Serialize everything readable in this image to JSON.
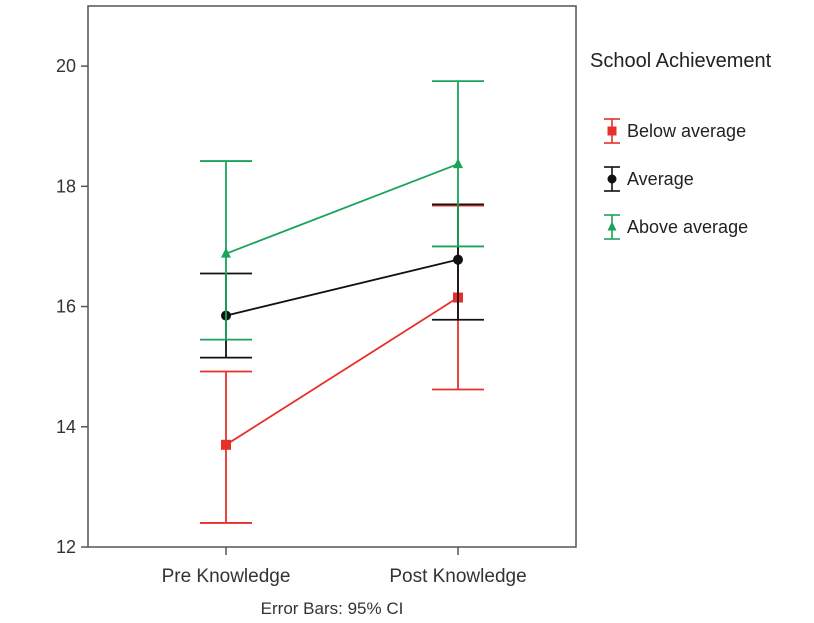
{
  "chart_data": {
    "type": "line",
    "title": "",
    "xlabel": "",
    "ylabel": "",
    "categories": [
      "Pre Knowledge",
      "Post Knowledge"
    ],
    "ylim": [
      12,
      21
    ],
    "yticks": [
      12,
      14,
      16,
      18,
      20
    ],
    "footnote": "Error Bars: 95% CI",
    "legend": {
      "title": "School Achievement",
      "position": "right"
    },
    "series": [
      {
        "name": "Below average",
        "color": "#e8302a",
        "marker": "square",
        "values": [
          13.7,
          16.15
        ],
        "ci_low": [
          12.4,
          14.62
        ],
        "ci_high": [
          14.92,
          17.68
        ]
      },
      {
        "name": "Average",
        "color": "#111111",
        "marker": "circle",
        "values": [
          15.85,
          16.78
        ],
        "ci_low": [
          15.15,
          15.78
        ],
        "ci_high": [
          16.55,
          17.7
        ]
      },
      {
        "name": "Above average",
        "color": "#1aa35a",
        "marker": "triangle",
        "values": [
          16.88,
          18.37
        ],
        "ci_low": [
          15.45,
          17.0
        ],
        "ci_high": [
          18.42,
          19.75
        ]
      }
    ],
    "grid": false
  }
}
